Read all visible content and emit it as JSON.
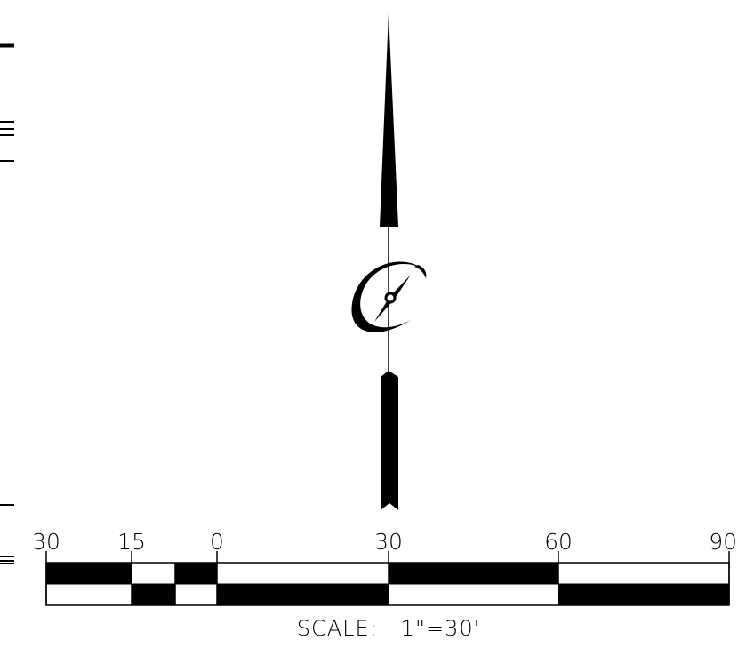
{
  "map": {
    "scale_bar": {
      "tick_labels": [
        "30",
        "15",
        "0",
        "30",
        "60",
        "90"
      ],
      "scale_text": "SCALE:   1\"=30'",
      "colors": {
        "fill": "#000000",
        "background": "#ffffff"
      }
    },
    "north_arrow": {
      "icon": "north-arrow-icon",
      "compass_icon": "compass-rose-icon"
    },
    "edge_marks": {
      "icon": "drawing-border-marks"
    }
  }
}
